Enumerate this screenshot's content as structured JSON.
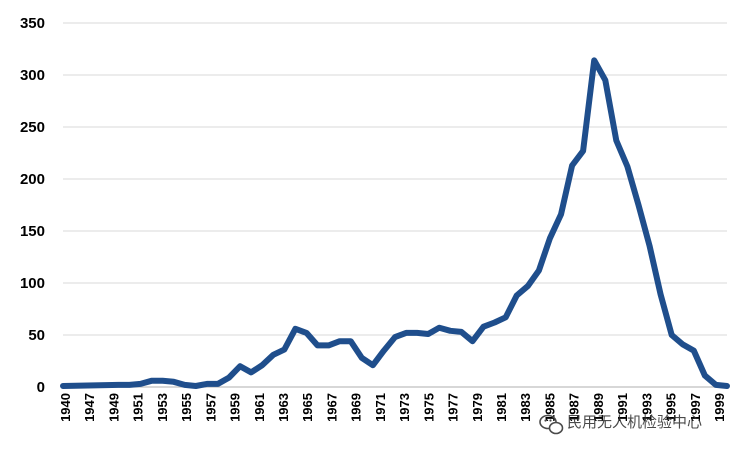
{
  "chart_data": {
    "type": "line",
    "title": "",
    "xlabel": "",
    "ylabel": "",
    "ylim": [
      0,
      350
    ],
    "y_ticks": [
      0,
      50,
      100,
      150,
      200,
      250,
      300,
      350
    ],
    "grid": "horizontal",
    "legend": "none",
    "line_color": "#1f4e8c",
    "grid_color": "#d9d9d9",
    "x_tick_labels": [
      "1940",
      "1947",
      "1949",
      "1951",
      "1953",
      "1955",
      "1957",
      "1959",
      "1961",
      "1963",
      "1965",
      "1967",
      "1969",
      "1971",
      "1973",
      "1975",
      "1977",
      "1979",
      "1981",
      "1983",
      "1985",
      "1987",
      "1989",
      "1991",
      "1993",
      "1995",
      "1997",
      "1999"
    ],
    "x": [
      1940,
      1945,
      1946,
      1947,
      1948,
      1949,
      1950,
      1951,
      1952,
      1953,
      1954,
      1955,
      1956,
      1957,
      1958,
      1959,
      1960,
      1961,
      1962,
      1963,
      1964,
      1965,
      1966,
      1967,
      1968,
      1969,
      1970,
      1971,
      1972,
      1973,
      1974,
      1975,
      1976,
      1977,
      1978,
      1979,
      1980,
      1981,
      1982,
      1983,
      1984,
      1985,
      1986,
      1987,
      1988,
      1989,
      1990,
      1991,
      1992,
      1993,
      1994,
      1995,
      1996,
      1997,
      1998,
      1999,
      2000
    ],
    "series": [
      {
        "values": [
          1,
          2,
          2,
          3,
          6,
          6,
          5,
          2,
          1,
          3,
          3,
          9,
          20,
          14,
          21,
          31,
          36,
          56,
          52,
          40,
          40,
          44,
          44,
          28,
          21,
          35,
          48,
          52,
          52,
          51,
          57,
          54,
          53,
          44,
          58,
          62,
          67,
          88,
          97,
          112,
          143,
          166,
          213,
          227,
          314,
          295,
          237,
          212,
          175,
          136,
          89,
          50,
          41,
          35,
          11,
          2,
          1
        ]
      }
    ]
  },
  "watermark": {
    "icon": "wechat-icon",
    "text": "民用无人机检验中心"
  }
}
